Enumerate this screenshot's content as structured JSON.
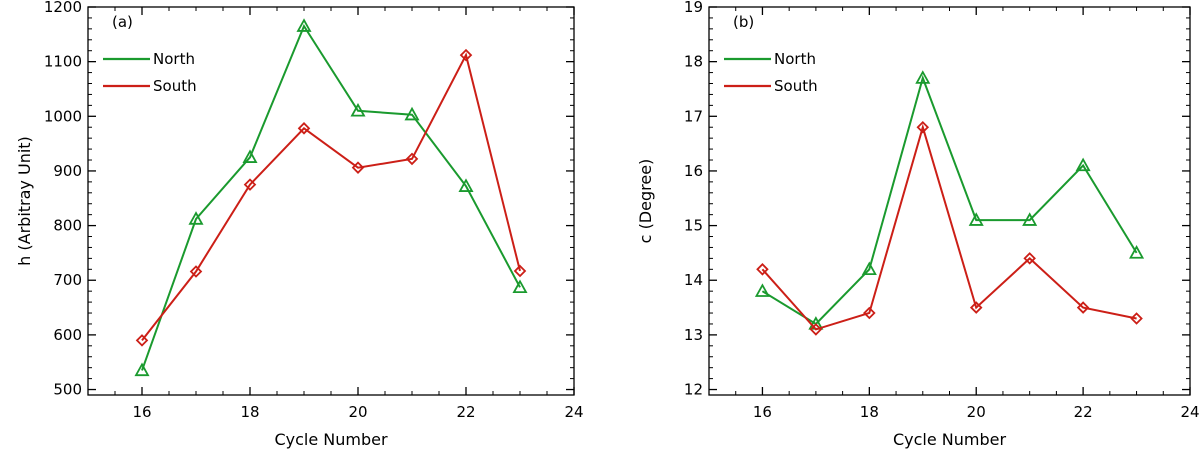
{
  "chart_data": [
    {
      "type": "line",
      "panel_label": "(a)",
      "xlabel": "Cycle Number",
      "ylabel": "h (Arbitray Unit)",
      "xlim": [
        15,
        24
      ],
      "ylim": [
        490,
        1200
      ],
      "xticks": [
        16,
        18,
        20,
        22,
        24
      ],
      "yticks": [
        500,
        600,
        700,
        800,
        900,
        1000,
        1100,
        1200
      ],
      "x": [
        16,
        17,
        18,
        19,
        20,
        21,
        22,
        23
      ],
      "legend_position": "top-left",
      "series": [
        {
          "name": "North",
          "color": "#1a9a2e",
          "marker": "triangle",
          "values": [
            535,
            812,
            925,
            1165,
            1010,
            1003,
            872,
            687
          ]
        },
        {
          "name": "South",
          "color": "#cc1f17",
          "marker": "diamond",
          "values": [
            590,
            716,
            875,
            978,
            906,
            922,
            1112,
            717
          ]
        }
      ]
    },
    {
      "type": "line",
      "panel_label": "(b)",
      "xlabel": "Cycle Number",
      "ylabel": "c (Degree)",
      "xlim": [
        15,
        24
      ],
      "ylim": [
        11.9,
        19
      ],
      "xticks": [
        16,
        18,
        20,
        22,
        24
      ],
      "yticks": [
        12,
        13,
        14,
        15,
        16,
        17,
        18,
        19
      ],
      "x": [
        16,
        17,
        18,
        19,
        20,
        21,
        22,
        23
      ],
      "legend_position": "top-left",
      "series": [
        {
          "name": "North",
          "color": "#1a9a2e",
          "marker": "triangle",
          "values": [
            13.8,
            13.2,
            14.2,
            17.7,
            15.1,
            15.1,
            16.1,
            14.5
          ]
        },
        {
          "name": "South",
          "color": "#cc1f17",
          "marker": "diamond",
          "values": [
            14.2,
            13.1,
            13.4,
            16.8,
            13.5,
            14.4,
            13.5,
            13.3
          ]
        }
      ]
    }
  ]
}
